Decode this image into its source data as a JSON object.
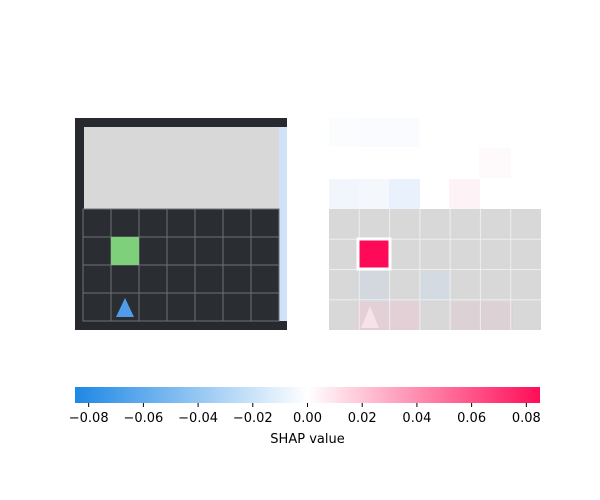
{
  "left_panel": {
    "grid_cols": 7,
    "grid_rows": 7,
    "colors": {
      "frame": "#262a2e",
      "cell": "#2a2e33",
      "cell_line": "#6e7275",
      "unseen": "#d8d8d8",
      "goal": "#7fd07a",
      "agent": "#4f9dea",
      "side_strip": "#cfe2f7"
    },
    "goal_cell": [
      1,
      4
    ],
    "agent_cell": [
      1,
      6
    ],
    "agent_icon": "triangle-up-icon"
  },
  "right_panel": {
    "grid_cols": 7,
    "grid_rows": 4,
    "colors": {
      "background": "#d8d8d8",
      "cell_line": "#eeeeee",
      "highlight": "#ff0a58",
      "highlight_border": "#ffffff"
    },
    "highlight_cell": [
      1,
      1
    ],
    "agent_icon": "triangle-up-icon"
  },
  "colorbar": {
    "ticks": [
      "−0.08",
      "−0.06",
      "−0.04",
      "−0.02",
      "0.00",
      "0.02",
      "0.04",
      "0.06",
      "0.08"
    ],
    "tick_values": [
      -0.08,
      -0.06,
      -0.04,
      -0.02,
      0.0,
      0.02,
      0.04,
      0.06,
      0.08
    ],
    "vmin": -0.085,
    "vmax": 0.085,
    "label": "SHAP value",
    "colors": {
      "negative": "#1e88e5",
      "zero": "#ffffff",
      "positive": "#ff0d57"
    }
  }
}
